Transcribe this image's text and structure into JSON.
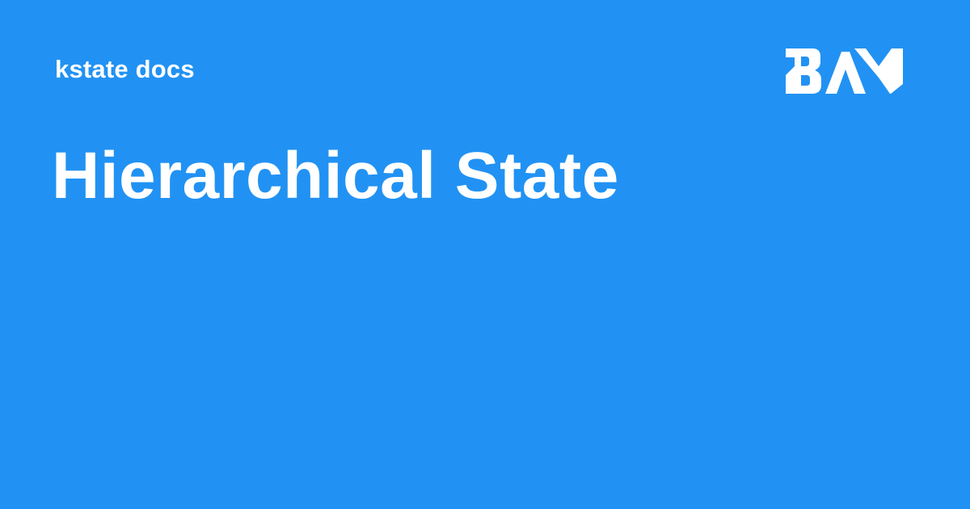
{
  "colors": {
    "background": "#2192f3",
    "text": "#ffffff",
    "logo": "#ffffff"
  },
  "header": {
    "site_name": "kstate docs"
  },
  "main": {
    "title": "Hierarchical State"
  },
  "logo": {
    "icon": "bam-logo-icon",
    "text": "BAM"
  }
}
